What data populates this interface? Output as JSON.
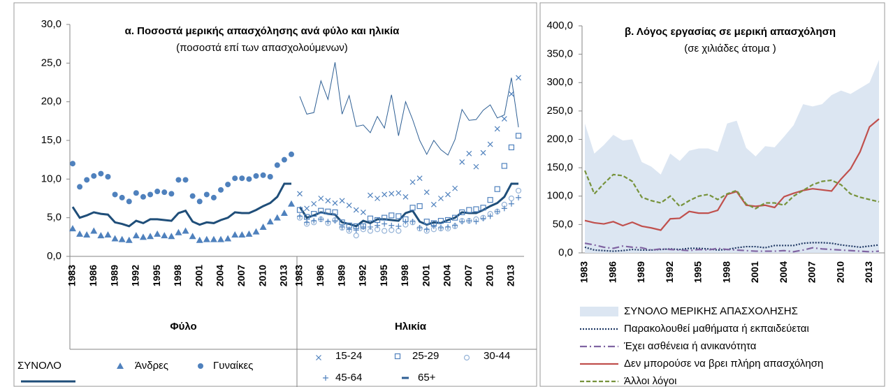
{
  "chart_data": [
    {
      "type": "line",
      "title": "α. Ποσοστά μερικής απασχόλησης  ανά φύλο και ηλικία",
      "subtitle": "(ποσοστά επί των απασχολούμενων)",
      "groups": [
        "Φύλο",
        "Ηλικία"
      ],
      "categories": [
        "1983",
        null,
        null,
        "1986",
        null,
        null,
        "1989",
        null,
        null,
        "1992",
        null,
        null,
        "1995",
        null,
        null,
        "1998",
        null,
        null,
        "2001",
        null,
        null,
        "2004",
        null,
        null,
        "2007",
        null,
        null,
        "2010",
        null,
        null,
        "2013",
        null,
        "1983",
        null,
        null,
        "1986",
        null,
        null,
        "1989",
        null,
        null,
        "1992",
        null,
        null,
        "1995",
        null,
        null,
        "1998",
        null,
        null,
        "2001",
        null,
        null,
        "2004",
        null,
        null,
        "2007",
        null,
        null,
        "2010",
        null,
        null,
        "2013",
        null
      ],
      "ylim": [
        0,
        30
      ],
      "yticks": [
        {
          "value": 0,
          "label": "0,0"
        },
        {
          "value": 5,
          "label": "5,0"
        },
        {
          "value": 10,
          "label": "10,0"
        },
        {
          "value": 15,
          "label": "15,0"
        },
        {
          "value": 20,
          "label": "20,0"
        },
        {
          "value": 25,
          "label": "25,0"
        },
        {
          "value": 30,
          "label": "30,0"
        }
      ],
      "series": [
        {
          "name": "ΣΥΝΟΛΟ",
          "color": "#1f4e79",
          "marker": "none",
          "line_width": 3,
          "values": [
            6.4,
            5.0,
            5.3,
            5.7,
            5.5,
            5.4,
            4.4,
            4.2,
            3.9,
            4.6,
            4.3,
            4.8,
            4.8,
            4.7,
            4.6,
            5.6,
            5.9,
            4.5,
            4.1,
            4.4,
            4.3,
            4.7,
            5.0,
            5.7,
            5.6,
            5.6,
            6.0,
            6.5,
            6.9,
            7.7,
            9.4,
            9.4,
            6.4,
            5.0,
            5.3,
            5.7,
            5.5,
            5.4,
            4.4,
            4.2,
            3.9,
            4.6,
            4.3,
            4.8,
            4.8,
            4.7,
            4.6,
            5.6,
            5.9,
            4.5,
            4.1,
            4.4,
            4.3,
            4.7,
            5.0,
            5.7,
            5.6,
            5.6,
            6.0,
            6.5,
            6.9,
            7.7,
            9.4,
            9.4
          ]
        },
        {
          "name": "Άνδρες",
          "color": "#4f81bd",
          "marker": "triangle",
          "line_width": 0,
          "values": [
            3.6,
            2.9,
            2.8,
            3.3,
            2.7,
            2.8,
            2.3,
            2.2,
            2.1,
            2.7,
            2.5,
            2.6,
            2.9,
            2.7,
            2.6,
            3.1,
            3.3,
            2.6,
            2.1,
            2.2,
            2.2,
            2.2,
            2.3,
            2.8,
            2.8,
            2.9,
            3.2,
            3.8,
            4.5,
            5.0,
            5.6,
            6.8,
            null,
            null,
            null,
            null,
            null,
            null,
            null,
            null,
            null,
            null,
            null,
            null,
            null,
            null,
            null,
            null,
            null,
            null,
            null,
            null,
            null,
            null,
            null,
            null,
            null,
            null,
            null,
            null,
            null,
            null,
            null,
            null
          ]
        },
        {
          "name": "Γυναίκες",
          "color": "#4f81bd",
          "marker": "circle",
          "line_width": 0,
          "values": [
            12.0,
            9.0,
            9.9,
            10.4,
            10.7,
            10.3,
            8.0,
            7.6,
            7.1,
            8.2,
            7.7,
            8.0,
            8.4,
            8.3,
            8.1,
            9.9,
            9.9,
            7.8,
            7.1,
            8.0,
            7.6,
            8.6,
            9.3,
            10.1,
            10.1,
            10.0,
            10.4,
            10.5,
            10.3,
            11.8,
            12.5,
            13.2,
            null,
            null,
            null,
            null,
            null,
            null,
            null,
            null,
            null,
            null,
            null,
            null,
            null,
            null,
            null,
            null,
            null,
            null,
            null,
            null,
            null,
            null,
            null,
            null,
            null,
            null,
            null,
            null,
            null,
            null,
            null,
            null
          ]
        },
        {
          "name": "15-24",
          "color": "#4f81bd",
          "marker": "x",
          "line_width": 0,
          "values": [
            null,
            null,
            null,
            null,
            null,
            null,
            null,
            null,
            null,
            null,
            null,
            null,
            null,
            null,
            null,
            null,
            null,
            null,
            null,
            null,
            null,
            null,
            null,
            null,
            null,
            null,
            null,
            null,
            null,
            null,
            null,
            null,
            8.1,
            6.2,
            6.8,
            7.5,
            7.2,
            6.9,
            7.2,
            6.6,
            6.0,
            5.7,
            7.9,
            7.5,
            8.0,
            8.1,
            8.2,
            7.7,
            9.6,
            10.1,
            8.3,
            6.7,
            7.5,
            8.0,
            8.8,
            12.2,
            13.3,
            11.6,
            13.4,
            14.5,
            16.5,
            17.8,
            21.0,
            23.1
          ]
        },
        {
          "name": "25-29",
          "color": "#4f81bd",
          "marker": "square",
          "line_width": 0,
          "values": [
            null,
            null,
            null,
            null,
            null,
            null,
            null,
            null,
            null,
            null,
            null,
            null,
            null,
            null,
            null,
            null,
            null,
            null,
            null,
            null,
            null,
            null,
            null,
            null,
            null,
            null,
            null,
            null,
            null,
            null,
            null,
            null,
            6.0,
            5.1,
            5.5,
            5.9,
            5.8,
            5.7,
            4.4,
            4.0,
            3.9,
            3.9,
            4.9,
            4.7,
            5.0,
            5.3,
            5.2,
            4.8,
            6.3,
            6.5,
            4.5,
            4.3,
            4.6,
            4.7,
            5.0,
            5.7,
            6.0,
            6.1,
            6.3,
            7.3,
            8.7,
            11.7,
            14.1,
            15.6
          ]
        },
        {
          "name": "30-44",
          "color": "#95b3d7",
          "marker": "ring",
          "line_width": 0,
          "values": [
            null,
            null,
            null,
            null,
            null,
            null,
            null,
            null,
            null,
            null,
            null,
            null,
            null,
            null,
            null,
            null,
            null,
            null,
            null,
            null,
            null,
            null,
            null,
            null,
            null,
            null,
            null,
            null,
            null,
            null,
            null,
            null,
            5.0,
            4.2,
            4.4,
            4.8,
            4.3,
            4.7,
            3.7,
            3.3,
            2.7,
            3.5,
            3.3,
            3.5,
            3.3,
            3.4,
            3.3,
            4.1,
            4.4,
            3.6,
            3.3,
            3.5,
            3.6,
            3.6,
            3.9,
            4.6,
            4.6,
            4.8,
            5.0,
            5.5,
            5.8,
            6.7,
            7.5,
            8.5
          ]
        },
        {
          "name": "45-64",
          "color": "#4f81bd",
          "marker": "plus",
          "line_width": 0,
          "values": [
            null,
            null,
            null,
            null,
            null,
            null,
            null,
            null,
            null,
            null,
            null,
            null,
            null,
            null,
            null,
            null,
            null,
            null,
            null,
            null,
            null,
            null,
            null,
            null,
            null,
            null,
            null,
            null,
            null,
            null,
            null,
            null,
            5.2,
            4.4,
            4.6,
            4.8,
            4.5,
            4.6,
            3.8,
            3.5,
            3.4,
            3.8,
            3.8,
            4.0,
            4.2,
            4.0,
            3.9,
            4.5,
            4.5,
            3.7,
            3.5,
            3.9,
            3.7,
            3.8,
            4.0,
            4.5,
            4.6,
            4.5,
            4.9,
            5.2,
            5.8,
            6.2,
            6.8,
            7.6
          ]
        },
        {
          "name": "65+",
          "color": "#2e5f94",
          "marker": "dash",
          "line_width": 1,
          "values": [
            null,
            null,
            null,
            null,
            null,
            null,
            null,
            null,
            null,
            null,
            null,
            null,
            null,
            null,
            null,
            null,
            null,
            null,
            null,
            null,
            null,
            null,
            null,
            null,
            null,
            null,
            null,
            null,
            null,
            null,
            null,
            null,
            20.7,
            18.4,
            18.6,
            22.7,
            20.3,
            25.1,
            18.4,
            20.8,
            16.8,
            17.0,
            16.0,
            18.1,
            16.6,
            20.9,
            15.6,
            20.0,
            17.7,
            15.0,
            13.2,
            15.0,
            13.8,
            13.1,
            15.1,
            19.0,
            17.6,
            17.7,
            18.9,
            19.6,
            17.9,
            18.3,
            23.1,
            16.7
          ]
        }
      ]
    },
    {
      "type": "line",
      "title": "β. Λόγος εργασίας σε μερική απασχόληση",
      "subtitle": "(σε χιλιάδες άτομα )",
      "categories": [
        "1983",
        null,
        null,
        "1986",
        null,
        null,
        "1989",
        null,
        null,
        "1992",
        null,
        null,
        "1995",
        null,
        null,
        "1998",
        null,
        null,
        "2001",
        null,
        null,
        "2004",
        null,
        null,
        "2007",
        null,
        null,
        "2010",
        null,
        null,
        "2013",
        null
      ],
      "ylim": [
        0,
        400
      ],
      "yticks": [
        {
          "value": 0,
          "label": "0,0"
        },
        {
          "value": 50,
          "label": "50,0"
        },
        {
          "value": 100,
          "label": "100,0"
        },
        {
          "value": 150,
          "label": "150,0"
        },
        {
          "value": 200,
          "label": "200,0"
        },
        {
          "value": 250,
          "label": "250,0"
        },
        {
          "value": 300,
          "label": "300,0"
        },
        {
          "value": 350,
          "label": "350,0"
        },
        {
          "value": 400,
          "label": "400,0"
        }
      ],
      "series": [
        {
          "name": "ΣΥΝΟΛΟ ΜΕΡΙΚΗΣ ΑΠΑΣΧΟΛΗΣΗΣ",
          "color": "#dce6f2",
          "style": "area",
          "values": [
            228,
            175,
            190,
            208,
            198,
            200,
            160,
            152,
            138,
            175,
            162,
            180,
            184,
            184,
            178,
            228,
            233,
            185,
            170,
            188,
            186,
            205,
            225,
            262,
            258,
            262,
            278,
            286,
            280,
            290,
            300,
            340
          ]
        },
        {
          "name": "Παρακολουθεί μαθήματα ή εκπαιδεύεται",
          "color": "#1f3864",
          "style": "line",
          "dash": "2,2",
          "values": [
            10,
            5,
            4,
            3,
            4,
            6,
            5,
            5,
            6,
            7,
            6,
            8,
            8,
            7,
            5,
            6,
            9,
            11,
            11,
            9,
            13,
            13,
            13,
            17,
            18,
            18,
            17,
            14,
            12,
            10,
            12,
            14
          ]
        },
        {
          "name": "Έχει ασθένεια ή ανικανότητα",
          "color": "#8064a2",
          "style": "line",
          "dash": "10,4,2,4",
          "values": [
            17,
            14,
            10,
            8,
            12,
            10,
            9,
            5,
            7,
            6,
            5,
            4,
            6,
            5,
            8,
            6,
            5,
            4,
            3,
            3,
            3,
            4,
            2,
            5,
            9,
            7,
            6,
            5,
            4,
            3,
            2,
            3
          ]
        },
        {
          "name": "Δεν μπορούσε να βρει πλήρη απασχόληση",
          "color": "#c0504d",
          "style": "line",
          "dash": "",
          "values": [
            57,
            53,
            51,
            55,
            48,
            54,
            47,
            44,
            40,
            60,
            61,
            73,
            70,
            70,
            75,
            103,
            108,
            84,
            82,
            84,
            80,
            99,
            105,
            110,
            113,
            111,
            109,
            130,
            148,
            178,
            222,
            236
          ]
        },
        {
          "name": "Άλλοι λόγοι",
          "color": "#77933c",
          "style": "line",
          "dash": "6,3",
          "values": [
            145,
            104,
            122,
            138,
            136,
            126,
            98,
            92,
            88,
            100,
            82,
            92,
            100,
            103,
            94,
            104,
            110,
            86,
            78,
            88,
            88,
            84,
            100,
            110,
            120,
            126,
            128,
            120,
            104,
            98,
            94,
            90
          ]
        }
      ]
    }
  ]
}
